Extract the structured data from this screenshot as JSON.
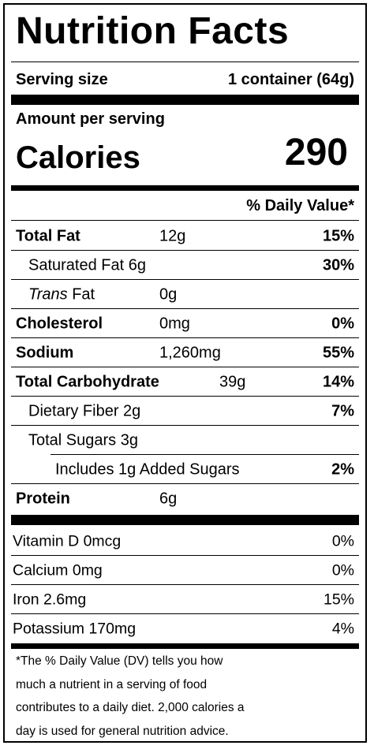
{
  "title": "Nutrition Facts",
  "serving": {
    "label": "Serving size",
    "value": "1 container (64g)"
  },
  "amount_per_serving": "Amount per serving",
  "calories": {
    "label": "Calories",
    "value": "290"
  },
  "dv_header": "% Daily Value*",
  "nutrients": [
    {
      "label": "Total Fat",
      "amount": "12g",
      "pct": "15%"
    },
    {
      "label": "Saturated Fat 6g",
      "amount": "",
      "pct": "30%"
    },
    {
      "label_italic": "Trans",
      "label": " Fat",
      "amount": "0g",
      "pct": ""
    },
    {
      "label": "Cholesterol",
      "amount": "0mg",
      "pct": "0%"
    },
    {
      "label": "Sodium",
      "amount": "1,260mg",
      "pct": "55%"
    },
    {
      "label": "Total Carbohydrate",
      "amount": "39g",
      "pct": "14%"
    },
    {
      "label": "Dietary Fiber 2g",
      "amount": "",
      "pct": "7%"
    },
    {
      "label": "Total Sugars 3g",
      "amount": "",
      "pct": ""
    },
    {
      "label": "Includes 1g Added Sugars",
      "amount": "",
      "pct": "2%"
    },
    {
      "label": "Protein",
      "amount": "6g",
      "pct": ""
    }
  ],
  "vitamins": [
    {
      "label": "Vitamin D 0mcg",
      "pct": "0%"
    },
    {
      "label": "Calcium 0mg",
      "pct": "0%"
    },
    {
      "label": "Iron 2.6mg",
      "pct": "15%"
    },
    {
      "label": "Potassium 170mg",
      "pct": "4%"
    }
  ],
  "footnote": [
    "*The % Daily Value (DV) tells you how",
    "much a nutrient in a serving of food",
    "contributes to a daily diet. 2,000 calories a",
    "day is used for general nutrition advice."
  ]
}
